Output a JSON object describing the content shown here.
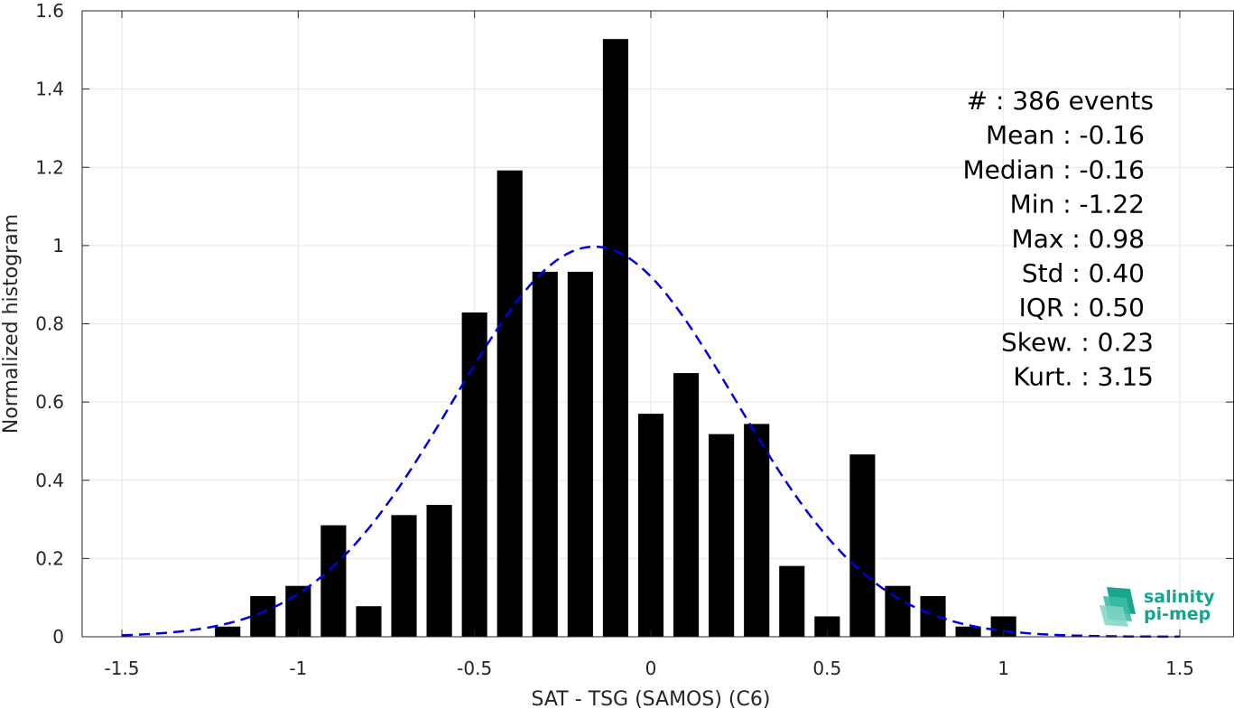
{
  "chart_data": {
    "type": "bar",
    "xlabel": "SAT - TSG (SAMOS) (C6)",
    "ylabel": "Normalized histogram",
    "xlim": [
      -1.5,
      1.5
    ],
    "ylim": [
      0,
      1.6
    ],
    "xticks": [
      -1.5,
      -1,
      -0.5,
      0,
      0.5,
      1,
      1.5
    ],
    "xtick_labels": [
      "-1.5",
      "-1",
      "-0.5",
      "0",
      "0.5",
      "1",
      "1.5"
    ],
    "yticks": [
      0,
      0.2,
      0.4,
      0.6,
      0.8,
      1,
      1.2,
      1.4,
      1.6
    ],
    "ytick_labels": [
      "0",
      "0.2",
      "0.4",
      "0.6",
      "0.8",
      "1",
      "1.2",
      "1.4",
      "1.6"
    ],
    "grid": true,
    "bin_width": 0.1,
    "x": [
      -1.2,
      -1.1,
      -1.0,
      -0.9,
      -0.8,
      -0.7,
      -0.6,
      -0.5,
      -0.4,
      -0.3,
      -0.2,
      -0.1,
      0.0,
      0.1,
      0.2,
      0.3,
      0.4,
      0.5,
      0.6,
      0.7,
      0.8,
      0.9,
      1.0
    ],
    "values": [
      0.026,
      0.104,
      0.13,
      0.285,
      0.078,
      0.311,
      0.337,
      0.829,
      1.192,
      0.933,
      0.933,
      1.528,
      0.57,
      0.674,
      0.518,
      0.544,
      0.181,
      0.052,
      0.466,
      0.13,
      0.104,
      0.026,
      0.052
    ],
    "bar_color": "#000000",
    "fit_curve": {
      "style": "dashed",
      "color": "#0000e0",
      "mean": -0.16,
      "std": 0.4,
      "x_range": [
        -1.5,
        1.5
      ]
    }
  },
  "stats": [
    {
      "label": "#  : 386 events",
      "anchor": "1278"
    },
    {
      "label": "Mean : -0.16",
      "anchor": "1268"
    },
    {
      "label": "Median : -0.16",
      "anchor": "1268"
    },
    {
      "label": "Min : -1.22",
      "anchor": "1268"
    },
    {
      "label": "Max : 0.98",
      "anchor": "1268"
    },
    {
      "label": "Std : 0.40",
      "anchor": "1268"
    },
    {
      "label": "IQR : 0.50",
      "anchor": "1268"
    },
    {
      "label": "Skew. : 0.23",
      "anchor": "1278"
    },
    {
      "label": "Kurt. : 3.15",
      "anchor": "1278"
    }
  ],
  "logo": {
    "line1": "salinity",
    "line2": "pi-mep",
    "color": "#14a591"
  }
}
